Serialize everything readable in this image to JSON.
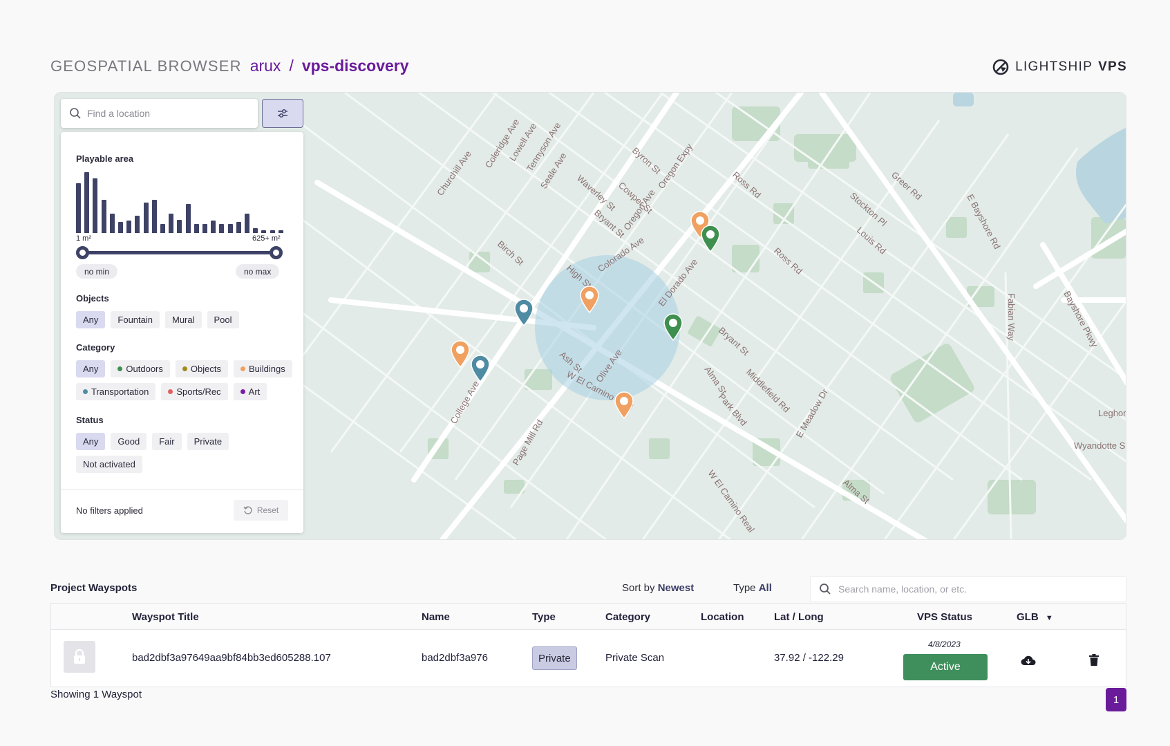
{
  "header": {
    "app_title": "GEOSPATIAL BROWSER",
    "org": "arux",
    "separator": "/",
    "project": "vps-discovery"
  },
  "brand": {
    "name": "LIGHTSHIP",
    "suffix": "VPS",
    "icon": "lightship-logo-icon"
  },
  "map": {
    "search_placeholder": "Find a location",
    "street_labels": [
      "Alma St",
      "Colorado Ave",
      "El Dorado Ave",
      "Oregon Expy",
      "Oregon Ave",
      "Middlefield Rd",
      "Louis Rd",
      "Ross Rd",
      "Greer Rd",
      "Stockton Pl",
      "E Bayshore Rd",
      "Bayshore Pkwy",
      "Fabian Way",
      "W El Camino Real",
      "Page Mill Rd",
      "College Ave",
      "Ash St",
      "Birch St",
      "Olive Ave",
      "High St",
      "Bryant St",
      "Waverley St",
      "Cowper St",
      "Byron St",
      "Tennyson Ave",
      "Lowell Ave",
      "Coleridge Ave",
      "Churchill Ave",
      "Seale Ave",
      "E Meadow Dr",
      "Park Blvd",
      "Leghor",
      "Wyandotte S"
    ],
    "pins": [
      {
        "category": "Buildings",
        "color": "#f0a060"
      },
      {
        "category": "Outdoors",
        "color": "#3f8f4f"
      },
      {
        "category": "Buildings",
        "color": "#f0a060"
      },
      {
        "category": "Transportation",
        "color": "#4f8ba3"
      },
      {
        "category": "Outdoors",
        "color": "#3f8f4f"
      },
      {
        "category": "Buildings",
        "color": "#f0a060"
      },
      {
        "category": "Transportation",
        "color": "#4f8ba3"
      },
      {
        "category": "Buildings",
        "color": "#f0a060"
      }
    ]
  },
  "filters": {
    "playable_area": {
      "label": "Playable area",
      "histogram": [
        0.82,
        1.0,
        0.9,
        0.55,
        0.32,
        0.18,
        0.2,
        0.28,
        0.5,
        0.55,
        0.15,
        0.32,
        0.22,
        0.48,
        0.15,
        0.15,
        0.2,
        0.15,
        0.15,
        0.18,
        0.32,
        0.08,
        0.04,
        0.04,
        0.04
      ],
      "min_label": "1 m²",
      "max_label": "625+ m²",
      "no_min": "no min",
      "no_max": "no max"
    },
    "objects": {
      "label": "Objects",
      "options": [
        "Any",
        "Fountain",
        "Mural",
        "Pool"
      ],
      "selected": "Any"
    },
    "category": {
      "label": "Category",
      "options": [
        {
          "label": "Any",
          "color": ""
        },
        {
          "label": "Outdoors",
          "color": "#3f8f4f"
        },
        {
          "label": "Objects",
          "color": "#a08a1a"
        },
        {
          "label": "Buildings",
          "color": "#f0a060"
        },
        {
          "label": "Transportation",
          "color": "#4f8ba3"
        },
        {
          "label": "Sports/Rec",
          "color": "#e06060"
        },
        {
          "label": "Art",
          "color": "#7a1fa2"
        }
      ],
      "selected": "Any"
    },
    "status": {
      "label": "Status",
      "options": [
        "Any",
        "Good",
        "Fair",
        "Private",
        "Not activated"
      ],
      "selected": "Any"
    },
    "footer": {
      "summary": "No filters applied",
      "reset": "Reset"
    }
  },
  "wayspots": {
    "title": "Project Wayspots",
    "sort_label": "Sort by",
    "sort_value": "Newest",
    "type_label": "Type",
    "type_value": "All",
    "search_placeholder": "Search name, location, or etc.",
    "columns": [
      "Wayspot Title",
      "Name",
      "Type",
      "Category",
      "Location",
      "Lat / Long",
      "VPS Status",
      "GLB"
    ],
    "rows": [
      {
        "title": "bad2dbf3a97649aa9bf84bb3ed605288.107",
        "name": "bad2dbf3a976",
        "type": "Private",
        "category": "Private Scan",
        "location": "",
        "latlong": "37.92 / -122.29",
        "date": "4/8/2023",
        "status": "Active"
      }
    ],
    "showing": "Showing 1 Wayspot",
    "page": "1"
  }
}
